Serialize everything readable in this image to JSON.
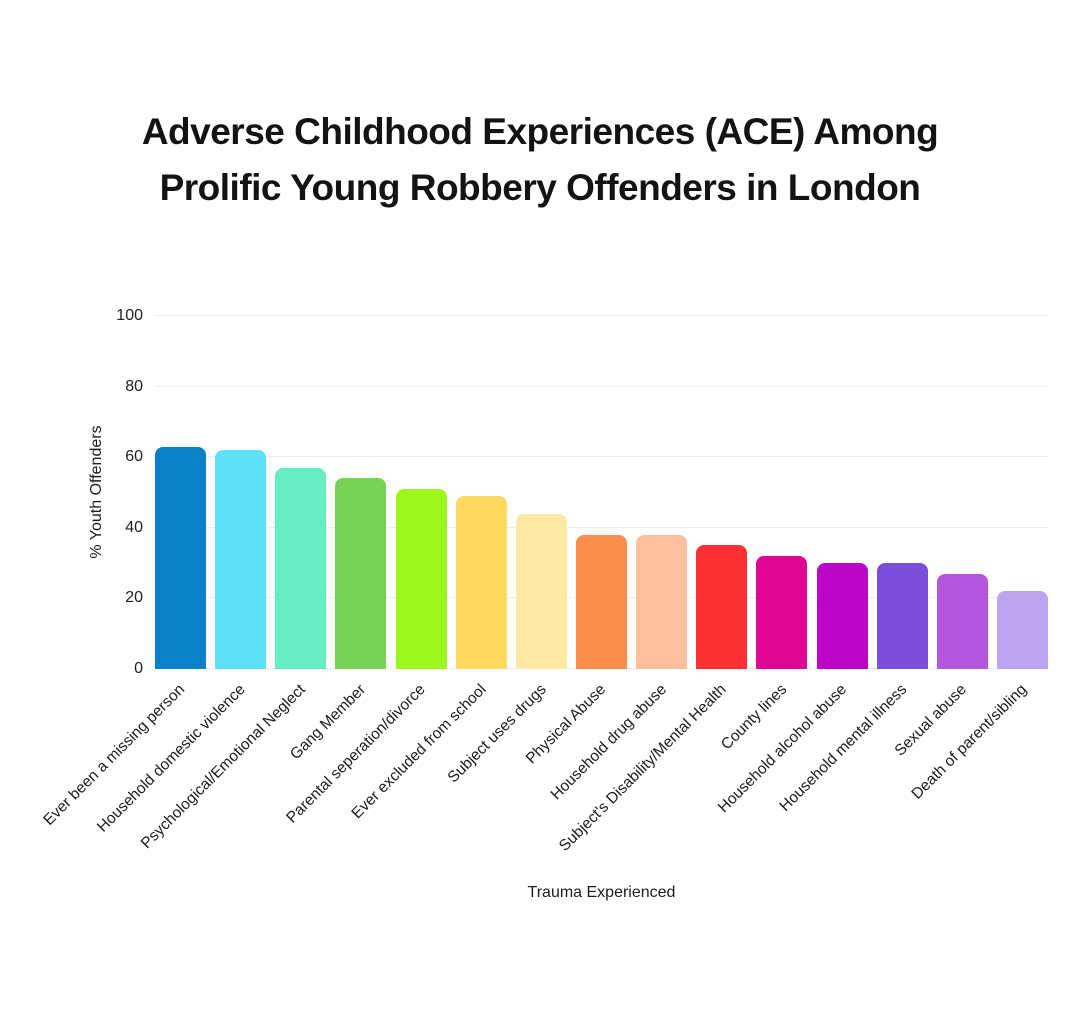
{
  "title": {
    "line1": "Adverse Childhood Experiences (ACE) Among",
    "line2": "Prolific Young Robbery Offenders in London"
  },
  "chart_data": {
    "type": "bar",
    "title": "Adverse Childhood Experiences (ACE) Among Prolific Young Robbery Offenders in London",
    "xlabel": "Trauma Experienced",
    "ylabel": "% Youth Offenders",
    "ylim": [
      0,
      100
    ],
    "yticks": [
      0,
      20,
      40,
      60,
      80,
      100
    ],
    "grid": true,
    "legend": "none",
    "categories": [
      "Ever been a missing person",
      "Household domestic violence",
      "Psychological/Emotional Neglect",
      "Gang Member",
      "Parental seperation/divorce",
      "Ever excluded from school",
      "Subject uses drugs",
      "Physical Abuse",
      "Household drug abuse",
      "Subject's Disability/Mental Health",
      "County lines",
      "Household alcohol abuse",
      "Household mental illness",
      "Sexual abuse",
      "Death of parent/sibling"
    ],
    "values": [
      63,
      62,
      57,
      54,
      51,
      49,
      44,
      38,
      38,
      35,
      32,
      30,
      30,
      27,
      22
    ],
    "bar_colors": [
      "#0a80c8",
      "#5ce1f8",
      "#66eec2",
      "#76d354",
      "#9ef61f",
      "#ffd95e",
      "#ffe8a3",
      "#fb8d4d",
      "#fec09c",
      "#fd3133",
      "#e00694",
      "#bb07c5",
      "#7c4fdb",
      "#b356dc",
      "#bca5f0"
    ]
  },
  "colors": {
    "background": "#ffffff",
    "gridline": "#eeeeee",
    "title_text": "#131313",
    "axis_text": "#202020"
  }
}
